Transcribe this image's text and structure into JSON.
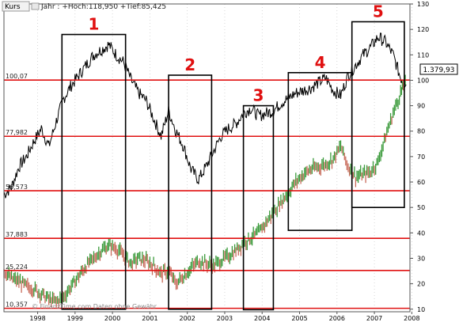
{
  "header": {
    "tab_label": "Kurs",
    "info_text": "Jahr : +Hoch:118,950 +Tief:85,425"
  },
  "price_tag": "1.379,93",
  "watermark": "© FinanzTime.com Daten ohne Gewähr",
  "colors": {
    "background": "#ffffff",
    "line": "#000000",
    "level_lines": "#e01010",
    "box_numbers": "#e01010",
    "candle_up": "#3a9a3a",
    "candle_down": "#c86a5a"
  },
  "chart_data": {
    "type": "line",
    "x_tick_labels": [
      "1998",
      "1999",
      "2000",
      "2001",
      "2002",
      "2003",
      "2004",
      "2005",
      "2006",
      "2007",
      "2008"
    ],
    "y_right": {
      "ylim": [
        9,
        130
      ],
      "ticks": [
        10,
        20,
        30,
        40,
        50,
        60,
        70,
        80,
        90,
        100,
        110,
        120,
        130
      ]
    },
    "level_lines": [
      {
        "label": "100,07",
        "value": 100.07
      },
      {
        "label": "77,982",
        "value": 77.98
      },
      {
        "label": "56,573",
        "value": 56.57
      },
      {
        "label": "37,883",
        "value": 37.88
      },
      {
        "label": "25,224",
        "value": 25.22
      },
      {
        "label": "10,357",
        "value": 10.36
      }
    ],
    "boxes": [
      {
        "label": "1",
        "x_start": 1999.15,
        "x_end": 2000.85,
        "y_low": 10.0,
        "y_high": 118.0
      },
      {
        "label": "2",
        "x_start": 2002.0,
        "x_end": 2003.15,
        "y_low": 10.0,
        "y_high": 102.0
      },
      {
        "label": "3",
        "x_start": 2004.0,
        "x_end": 2004.8,
        "y_low": 9.8,
        "y_high": 90.0
      },
      {
        "label": "4",
        "x_start": 2005.2,
        "x_end": 2006.9,
        "y_low": 41.0,
        "y_high": 103.0
      },
      {
        "label": "5",
        "x_start": 2006.9,
        "x_end": 2008.3,
        "y_low": 50.0,
        "y_high": 123.0
      }
    ],
    "series": [
      {
        "x": [
          1997.6,
          1997.8,
          1998.0,
          1998.2,
          1998.4,
          1998.6,
          1998.8,
          1999.0,
          1999.2,
          1999.4,
          1999.6,
          1999.8,
          2000.0,
          2000.2,
          2000.4,
          2000.6,
          2000.8,
          2001.0,
          2001.2,
          2001.4,
          2001.6,
          2001.8,
          2002.0,
          2002.2,
          2002.4,
          2002.6,
          2002.8,
          2003.0,
          2003.2,
          2003.4,
          2003.6,
          2003.8,
          2004.0,
          2004.2,
          2004.4,
          2004.6,
          2004.8,
          2005.0,
          2005.2,
          2005.4,
          2005.6,
          2005.8,
          2006.0,
          2006.2,
          2006.4,
          2006.6,
          2006.8,
          2007.0,
          2007.2,
          2007.4,
          2007.6,
          2007.8,
          2008.0,
          2008.2,
          2008.35
        ],
        "values": [
          55,
          58,
          66,
          70,
          76,
          81,
          74,
          84,
          93,
          98,
          102,
          106,
          110,
          112,
          114,
          110,
          107,
          100,
          95,
          92,
          85,
          78,
          88,
          80,
          74,
          65,
          61,
          66,
          72,
          78,
          81,
          83,
          87,
          89,
          86,
          87,
          88,
          91,
          93,
          95,
          96,
          97,
          99,
          101,
          96,
          94,
          102,
          106,
          110,
          113,
          117,
          115,
          110,
          101,
          98
        ]
      },
      {
        "x": [
          1997.6,
          1997.8,
          1998.0,
          1998.2,
          1998.4,
          1998.6,
          1998.8,
          1999.0,
          1999.2,
          1999.4,
          1999.6,
          1999.8,
          2000.0,
          2000.2,
          2000.4,
          2000.6,
          2000.8,
          2001.0,
          2001.2,
          2001.4,
          2001.6,
          2001.8,
          2002.0,
          2002.2,
          2002.4,
          2002.6,
          2002.8,
          2003.0,
          2003.2,
          2003.4,
          2003.6,
          2003.8,
          2004.0,
          2004.2,
          2004.4,
          2004.6,
          2004.8,
          2005.0,
          2005.2,
          2005.4,
          2005.6,
          2005.8,
          2006.0,
          2006.2,
          2006.4,
          2006.6,
          2006.8,
          2007.0,
          2007.2,
          2007.4,
          2007.6,
          2007.8,
          2008.0,
          2008.2,
          2008.35
        ],
        "values": [
          25,
          22,
          21,
          19,
          18,
          16,
          14,
          13,
          15,
          19,
          23,
          27,
          30,
          33,
          35,
          34,
          31,
          28,
          30,
          29,
          27,
          24,
          25,
          20,
          23,
          26,
          29,
          28,
          27,
          29,
          31,
          33,
          36,
          38,
          40,
          44,
          48,
          52,
          56,
          60,
          63,
          65,
          66,
          67,
          69,
          74,
          66,
          62,
          63,
          64,
          68,
          78,
          87,
          95,
          100
        ]
      }
    ]
  }
}
